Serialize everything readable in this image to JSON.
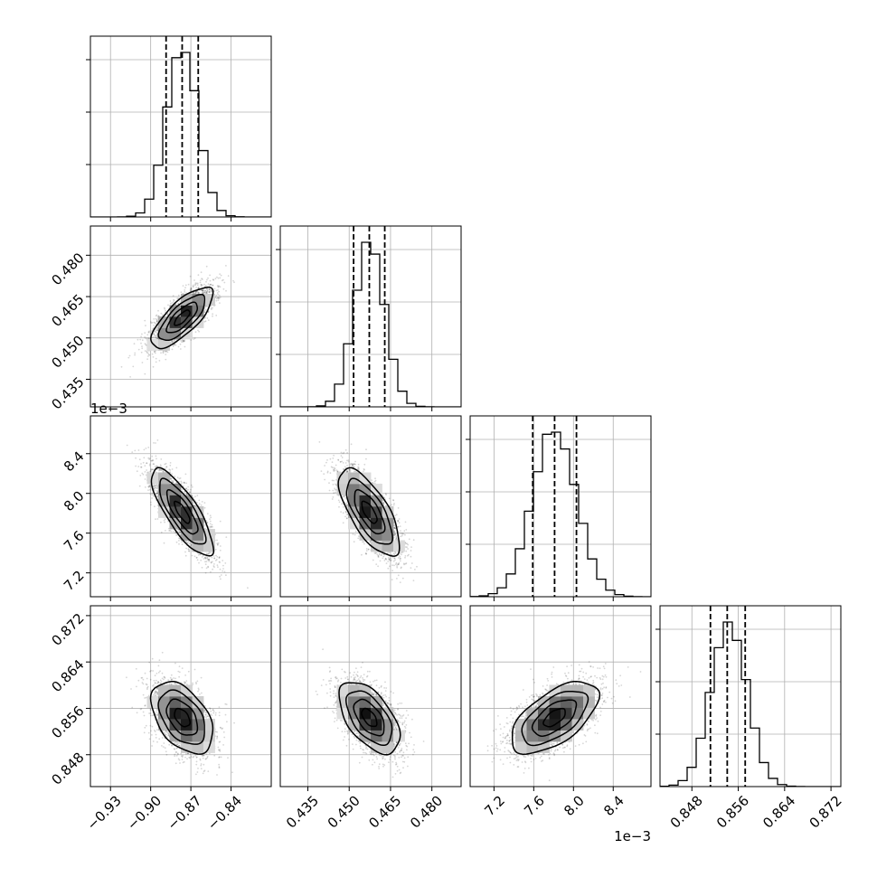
{
  "chart_data": {
    "type": "corner",
    "title": "",
    "grid": true,
    "parameters": [
      {
        "key": "p1",
        "axis_label": "",
        "range": [
          -0.945,
          -0.81
        ],
        "ticks": [
          -0.93,
          -0.9,
          -0.87,
          -0.84
        ],
        "tick_labels": [
          "−0.93",
          "−0.90",
          "−0.87",
          "−0.84"
        ],
        "scale_label": "",
        "mean": -0.8765,
        "sd": 0.0115,
        "quantiles": [
          -0.8885,
          -0.8765,
          -0.8645
        ],
        "hist_peak_ticks": 3
      },
      {
        "key": "p2",
        "axis_label": "",
        "range": [
          0.425,
          0.4906
        ],
        "ticks": [
          0.435,
          0.45,
          0.465,
          0.48
        ],
        "tick_labels": [
          "0.435",
          "0.450",
          "0.465",
          "0.480"
        ],
        "scale_label": "",
        "mean": 0.4573,
        "sd": 0.0055,
        "quantiles": [
          0.4516,
          0.4573,
          0.4629
        ],
        "hist_peak_ticks": 3
      },
      {
        "key": "p3",
        "axis_label": "",
        "range": [
          6.96,
          8.78
        ],
        "ticks": [
          7.2,
          7.6,
          8.0,
          8.4
        ],
        "tick_labels": [
          "7.2",
          "7.6",
          "8.0",
          "8.4"
        ],
        "scale_label": "1e−3",
        "mean": 7.81,
        "sd": 0.22,
        "quantiles": [
          7.59,
          7.81,
          8.03
        ],
        "hist_peak_ticks": 3
      },
      {
        "key": "p4",
        "axis_label": "",
        "range": [
          0.8425,
          0.8737
        ],
        "ticks": [
          0.848,
          0.856,
          0.864,
          0.872
        ],
        "tick_labels": [
          "0.848",
          "0.856",
          "0.864",
          "0.872"
        ],
        "scale_label": "",
        "mean": 0.8544,
        "sd": 0.0031,
        "quantiles": [
          0.8512,
          0.8541,
          0.8572
        ],
        "hist_peak_ticks": 3
      }
    ],
    "correlations": [
      {
        "rows": "p2",
        "cols": "p1",
        "r": 0.75
      },
      {
        "rows": "p3",
        "cols": "p1",
        "r": -0.8
      },
      {
        "rows": "p3",
        "cols": "p2",
        "r": -0.7
      },
      {
        "rows": "p4",
        "cols": "p1",
        "r": -0.45
      },
      {
        "rows": "p4",
        "cols": "p2",
        "r": -0.55
      },
      {
        "rows": "p4",
        "cols": "p3",
        "r": 0.6
      }
    ],
    "contour_levels_sigma": [
      0.5,
      1.0,
      1.5,
      2.0
    ],
    "quantile_line_style": "dashed",
    "colors": {
      "line": "#000000",
      "grid": "#b0b0b0",
      "points": "#000000"
    }
  }
}
